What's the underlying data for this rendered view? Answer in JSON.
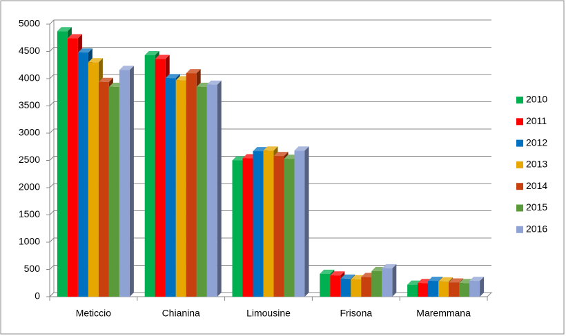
{
  "chart_data": {
    "type": "bar3d",
    "categories": [
      "Meticcio",
      "Chianina",
      "Limousine",
      "Frisona",
      "Maremmana"
    ],
    "series": [
      {
        "name": "2010",
        "color": "#00b050",
        "values": [
          4870,
          4430,
          2500,
          420,
          220
        ]
      },
      {
        "name": "2011",
        "color": "#ff0000",
        "values": [
          4740,
          4360,
          2540,
          390,
          250
        ]
      },
      {
        "name": "2012",
        "color": "#0070c0",
        "values": [
          4480,
          4010,
          2670,
          330,
          290
        ]
      },
      {
        "name": "2013",
        "color": "#e6a800",
        "values": [
          4300,
          3970,
          2680,
          320,
          280
        ]
      },
      {
        "name": "2014",
        "color": "#c8400e",
        "values": [
          3940,
          4100,
          2580,
          360,
          260
        ]
      },
      {
        "name": "2015",
        "color": "#5b9a3a",
        "values": [
          3850,
          3850,
          2530,
          470,
          250
        ]
      },
      {
        "name": "2016",
        "color": "#8fa2d4",
        "values": [
          4160,
          3890,
          2680,
          520,
          290
        ]
      }
    ],
    "ylim": [
      0,
      5000
    ],
    "yticks": [
      0,
      500,
      1000,
      1500,
      2000,
      2500,
      3000,
      3500,
      4000,
      4500,
      5000
    ],
    "grid": true,
    "legend": "right"
  }
}
